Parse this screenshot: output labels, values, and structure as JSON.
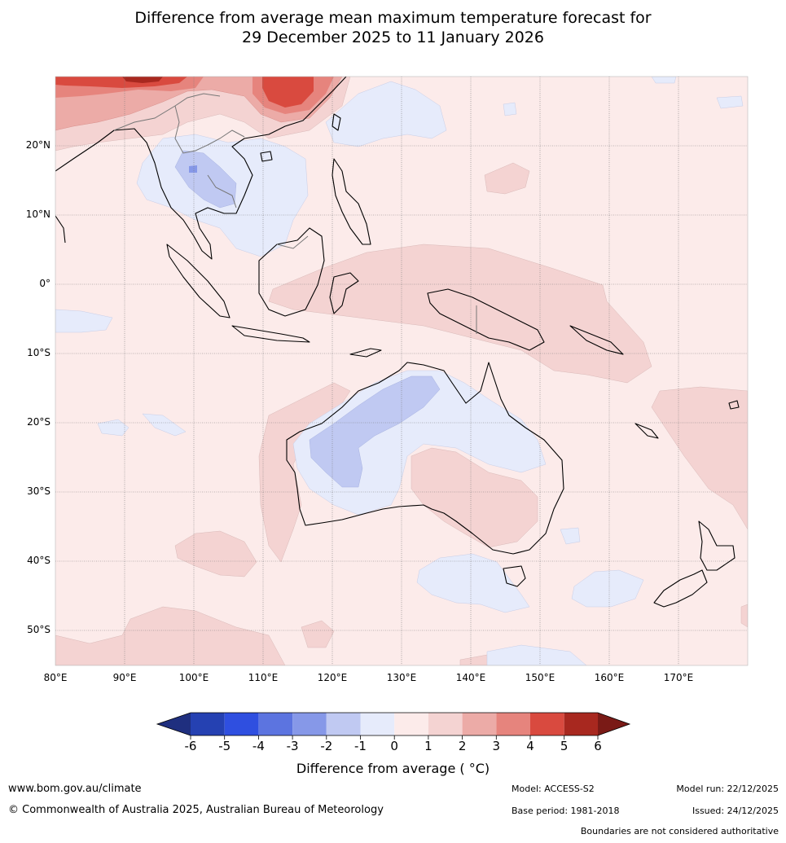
{
  "title_line1": "Difference from average mean maximum temperature forecast for",
  "title_line2": "29 December 2025 to 11 January 2026",
  "map": {
    "lon_range": [
      80,
      180
    ],
    "lat_range": [
      -55,
      30
    ],
    "lat_labels": [
      "20°N",
      "10°N",
      "0°",
      "10°S",
      "20°S",
      "30°S",
      "40°S",
      "50°S"
    ],
    "lon_labels": [
      "80°E",
      "90°E",
      "100°E",
      "110°E",
      "120°E",
      "130°E",
      "140°E",
      "150°E",
      "160°E",
      "170°E"
    ],
    "background_anomaly": "0 to 1"
  },
  "colorbar": {
    "title": "Difference from average ( °C)",
    "labels": [
      "-6",
      "-5",
      "-4",
      "-3",
      "-2",
      "-1",
      "0",
      "1",
      "2",
      "3",
      "4",
      "5",
      "6"
    ],
    "colors": [
      "#1f2f7f",
      "#2541b2",
      "#2f4fe0",
      "#5c74e0",
      "#8698e8",
      "#c0c9f2",
      "#e6ebfb",
      "#fcebea",
      "#f4d3d2",
      "#ecaba7",
      "#e6847d",
      "#d94a3f",
      "#a8281f",
      "#7a1a16"
    ]
  },
  "footer": {
    "website": "www.bom.gov.au/climate",
    "copyright": "© Commonwealth of Australia 2025, Australian Bureau of Meteorology",
    "model": "Model: ACCESS-S2",
    "base_period": "Base period: 1981-2018",
    "model_run": "Model run: 22/12/2025",
    "issued": "Issued: 24/12/2025",
    "boundaries_note": "Boundaries are not considered authoritative"
  }
}
